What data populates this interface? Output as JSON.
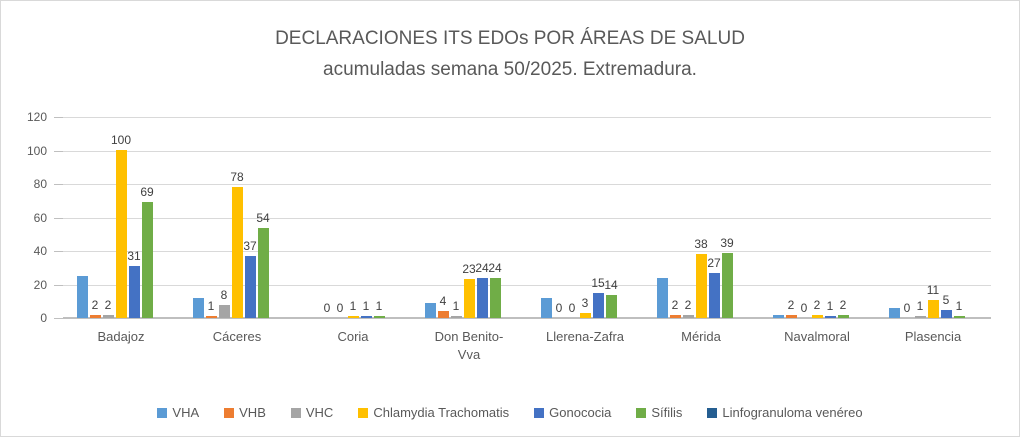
{
  "chart_data": {
    "type": "bar",
    "title": "DECLARACIONES ITS EDOs POR ÁREAS DE SALUD",
    "subtitle": "acumuladas semana 50/2025. Extremadura.",
    "categories": [
      "Badajoz",
      "Cáceres",
      "Coria",
      "Don Benito-\nVva",
      "Llerena-Zafra",
      "Mérida",
      "Navalmoral",
      "Plasencia"
    ],
    "series": [
      {
        "name": "VHA",
        "color": "#5B9BD5",
        "values": [
          25,
          12,
          0,
          9,
          12,
          24,
          2,
          6
        ],
        "data_labels": false
      },
      {
        "name": "VHB",
        "color": "#ED7D31",
        "values": [
          2,
          1,
          0,
          4,
          0,
          2,
          2,
          0
        ],
        "data_labels": true
      },
      {
        "name": "VHC",
        "color": "#A5A5A5",
        "values": [
          2,
          8,
          0,
          1,
          0,
          2,
          0,
          1
        ],
        "data_labels": true
      },
      {
        "name": "Chlamydia Trachomatis",
        "color": "#FFC000",
        "values": [
          100,
          78,
          1,
          23,
          3,
          38,
          2,
          11
        ],
        "data_labels": true
      },
      {
        "name": "Gonococia",
        "color": "#4472C4",
        "values": [
          31,
          37,
          1,
          24,
          15,
          27,
          1,
          5
        ],
        "data_labels": true
      },
      {
        "name": "Sífilis",
        "color": "#70AD47",
        "values": [
          69,
          54,
          1,
          24,
          14,
          39,
          2,
          1
        ],
        "data_labels": true
      },
      {
        "name": "Linfogranuloma venéreo",
        "color": "#255E91",
        "values": [
          0,
          0,
          0,
          0,
          0,
          0,
          0,
          0
        ],
        "data_labels": false
      }
    ],
    "ylim": [
      0,
      120
    ],
    "yticks": [
      0,
      20,
      40,
      60,
      80,
      100,
      120
    ],
    "grid": true,
    "legend_position": "bottom",
    "axis_color": "#BFBFBF",
    "gridline_color": "#D9D9D9",
    "title_color": "#595959",
    "data_label_color": "#404040"
  }
}
